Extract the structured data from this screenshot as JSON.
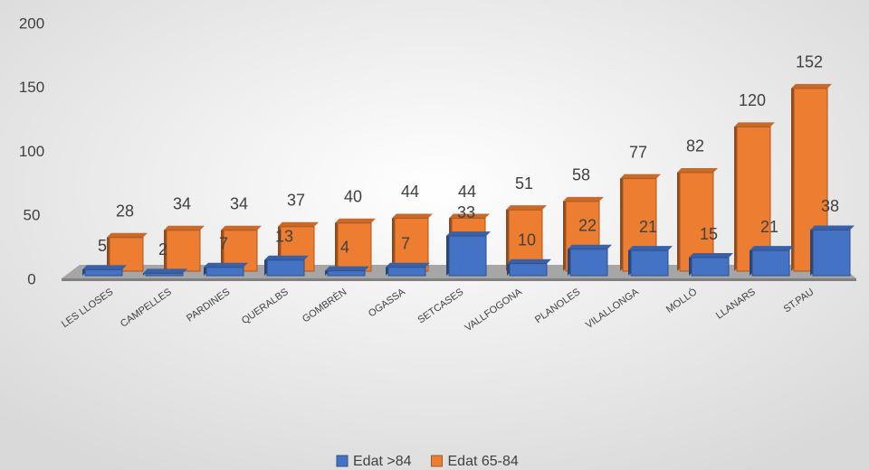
{
  "chart_data": {
    "type": "bar3d",
    "categories": [
      "LES LLOSES",
      "CAMPELLES",
      "PARDINES",
      "QUERALBS",
      "GOMBRÈN",
      "OGASSA",
      "SETCASES",
      "VALLFOGONA",
      "PLANOLES",
      "VILALLONGA",
      "MOLLÓ",
      "LLANARS",
      "ST.PAU"
    ],
    "series": [
      {
        "name": "Edat >84",
        "color": "#4472c4",
        "values": [
          5,
          2,
          7,
          13,
          4,
          7,
          33,
          10,
          22,
          21,
          15,
          21,
          38
        ]
      },
      {
        "name": "Edat 65-84",
        "color": "#ed7d31",
        "values": [
          28,
          34,
          34,
          37,
          40,
          44,
          44,
          51,
          58,
          77,
          82,
          120,
          152
        ]
      }
    ],
    "ylim": [
      0,
      200
    ],
    "yticks": [
      0,
      50,
      100,
      150,
      200
    ],
    "grid": false,
    "legend": "bottom"
  }
}
